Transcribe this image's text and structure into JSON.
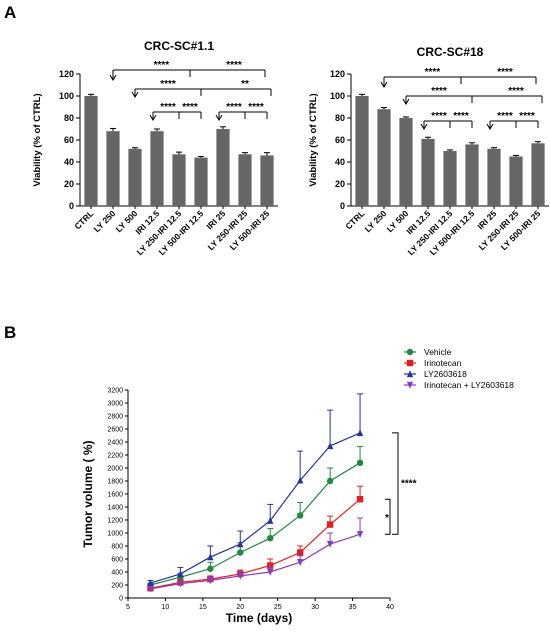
{
  "panels": {
    "a": "A",
    "b": "B"
  },
  "chart_data": [
    {
      "type": "bar",
      "title": "CRC-SC#1.1",
      "ylabel": "Viability (% of CTRL)",
      "xlabel": "",
      "ylim": [
        0,
        120
      ],
      "yticks": [
        0,
        20,
        40,
        60,
        80,
        100,
        120
      ],
      "categories": [
        "CTRL",
        "LY 250",
        "LY 500",
        "IRI 12.5",
        "LY 250-IRI 12.5",
        "LY 500-IRI 12.5",
        "IRI 25",
        "LY 250-IRI 25",
        "LY 500-IRI 25"
      ],
      "values": [
        100,
        68,
        52,
        68,
        47,
        44,
        70,
        47,
        46
      ],
      "errors": [
        1.5,
        2.5,
        1,
        2,
        2,
        1,
        2,
        1.5,
        2.5
      ],
      "bar_color": "#666666",
      "significance": [
        {
          "label": "****",
          "arrows": [
            1,
            7
          ],
          "mid": 4
        },
        {
          "label": "****",
          "arrows": [
            7
          ],
          "mid": null
        },
        {
          "label": "****",
          "arrows": [
            2,
            8
          ],
          "mid": 5
        },
        {
          "label": "**",
          "arrows": [
            8
          ],
          "mid": null
        },
        {
          "label": "****",
          "arrows": [
            3,
            4
          ],
          "mid": null
        },
        {
          "label": "****",
          "arrows": [
            4,
            5
          ],
          "mid": null
        },
        {
          "label": "****",
          "arrows": [
            6,
            7
          ],
          "mid": null
        },
        {
          "label": "****",
          "arrows": [
            7,
            8
          ],
          "mid": null
        }
      ]
    },
    {
      "type": "bar",
      "title": "CRC-SC#18",
      "ylabel": "Viability (% of CTRL)",
      "xlabel": "",
      "ylim": [
        0,
        120
      ],
      "yticks": [
        0,
        20,
        40,
        60,
        80,
        100,
        120
      ],
      "categories": [
        "CTRL",
        "LY 250",
        "LY 500",
        "IRI 12.5",
        "LY 250-IRI 12.5",
        "LY 500-IRI 12.5",
        "IRI 25",
        "LY 250-IRI 25",
        "LY 500-IRI 25"
      ],
      "values": [
        100,
        88,
        80,
        61,
        50,
        56,
        52,
        45,
        57
      ],
      "errors": [
        1.5,
        1.5,
        1,
        1.5,
        1,
        1.5,
        1,
        1,
        1.5
      ],
      "bar_color": "#666666",
      "significance": [
        {
          "label": "****",
          "arrows": [
            1,
            7
          ],
          "mid": 4
        },
        {
          "label": "****",
          "arrows": [
            7
          ],
          "mid": null
        },
        {
          "label": "****",
          "arrows": [
            2,
            8
          ],
          "mid": 5
        },
        {
          "label": "****",
          "arrows": [
            8
          ],
          "mid": null
        },
        {
          "label": "****",
          "arrows": [
            3,
            4
          ],
          "mid": null
        },
        {
          "label": "****",
          "arrows": [
            4,
            5
          ],
          "mid": null
        },
        {
          "label": "****",
          "arrows": [
            6,
            7
          ],
          "mid": null
        },
        {
          "label": "****",
          "arrows": [
            7,
            8
          ],
          "mid": null
        }
      ]
    },
    {
      "type": "line",
      "title": "",
      "xlabel": "Time (days)",
      "ylabel": "Tumor volume ( %)",
      "xlim": [
        5,
        40
      ],
      "ylim": [
        0,
        3200
      ],
      "xticks": [
        5,
        10,
        15,
        20,
        25,
        30,
        35,
        40
      ],
      "yticks": [
        0,
        200,
        400,
        600,
        800,
        1000,
        1200,
        1400,
        1600,
        1800,
        2000,
        2200,
        2400,
        2600,
        2800,
        3000,
        3200
      ],
      "x": [
        8,
        12,
        16,
        20,
        24,
        28,
        32,
        36
      ],
      "series": [
        {
          "name": "Vehicle",
          "color": "#1f8a3c",
          "marker": "circle",
          "values": [
            200,
            320,
            450,
            700,
            920,
            1270,
            1800,
            2080
          ],
          "errors": [
            30,
            60,
            100,
            150,
            150,
            200,
            200,
            250
          ]
        },
        {
          "name": "Irinotecan",
          "color": "#e02020",
          "marker": "square",
          "values": [
            150,
            240,
            290,
            370,
            500,
            700,
            1130,
            1520
          ],
          "errors": [
            20,
            40,
            50,
            60,
            100,
            100,
            130,
            200
          ]
        },
        {
          "name": "LY2603618",
          "color": "#2036a0",
          "marker": "triangle",
          "values": [
            230,
            370,
            630,
            830,
            1190,
            1810,
            2340,
            2540
          ],
          "errors": [
            40,
            100,
            170,
            200,
            250,
            450,
            550,
            600
          ]
        },
        {
          "name": "Irinotecan + LY2603618",
          "color": "#8a3cc0",
          "marker": "triangle-down",
          "values": [
            140,
            220,
            270,
            340,
            400,
            550,
            830,
            980
          ],
          "errors": [
            20,
            40,
            50,
            60,
            80,
            100,
            170,
            250
          ]
        }
      ],
      "annotations": [
        "****",
        "*"
      ]
    }
  ]
}
